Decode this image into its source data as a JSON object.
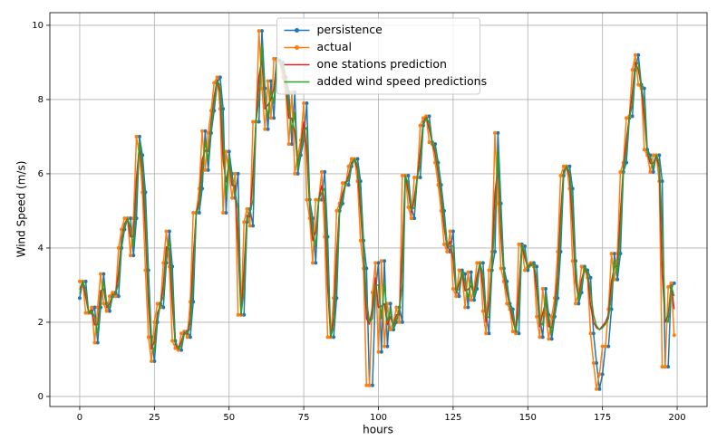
{
  "chart_data": {
    "type": "line",
    "xlabel": "hours",
    "ylabel": "Wind Speed (m/s)",
    "xlim": [
      -10,
      210
    ],
    "xticks": [
      0,
      25,
      50,
      75,
      100,
      125,
      150,
      175,
      200
    ],
    "ylim": [
      -0.27,
      10.34
    ],
    "yticks": [
      0,
      2,
      4,
      6,
      8,
      10
    ],
    "grid": true,
    "legend": "upper center",
    "x": [
      0,
      1,
      2,
      3,
      4,
      5,
      6,
      7,
      8,
      9,
      10,
      11,
      12,
      13,
      14,
      15,
      16,
      17,
      18,
      19,
      20,
      21,
      22,
      23,
      24,
      25,
      26,
      27,
      28,
      29,
      30,
      31,
      32,
      33,
      34,
      35,
      36,
      37,
      38,
      39,
      40,
      41,
      42,
      43,
      44,
      45,
      46,
      47,
      48,
      49,
      50,
      51,
      52,
      53,
      54,
      55,
      56,
      57,
      58,
      59,
      60,
      61,
      62,
      63,
      64,
      65,
      66,
      67,
      68,
      69,
      70,
      71,
      72,
      73,
      74,
      75,
      76,
      77,
      78,
      79,
      80,
      81,
      82,
      83,
      84,
      85,
      86,
      87,
      88,
      89,
      90,
      91,
      92,
      93,
      94,
      95,
      96,
      97,
      98,
      99,
      100,
      101,
      102,
      103,
      104,
      105,
      106,
      107,
      108,
      109,
      110,
      111,
      112,
      113,
      114,
      115,
      116,
      117,
      118,
      119,
      120,
      121,
      122,
      123,
      124,
      125,
      126,
      127,
      128,
      129,
      130,
      131,
      132,
      133,
      134,
      135,
      136,
      137,
      138,
      139,
      140,
      141,
      142,
      143,
      144,
      145,
      146,
      147,
      148,
      149,
      150,
      151,
      152,
      153,
      154,
      155,
      156,
      157,
      158,
      159,
      160,
      161,
      162,
      163,
      164,
      165,
      166,
      167,
      168,
      169,
      170,
      171,
      172,
      173,
      174,
      175,
      176,
      177,
      178,
      179,
      180,
      181,
      182,
      183,
      184,
      185,
      186,
      187,
      188,
      189,
      190,
      191,
      192,
      193,
      194,
      195,
      196,
      197,
      198,
      199
    ],
    "series": [
      {
        "name": "persistence",
        "color": "#1f77b4",
        "marker": true,
        "values": [
          2.65,
          3.1,
          3.1,
          2.25,
          2.25,
          2.4,
          1.45,
          2.4,
          3.3,
          2.5,
          2.3,
          2.7,
          2.8,
          2.7,
          4.0,
          4.5,
          4.8,
          4.8,
          3.8,
          4.8,
          7.0,
          6.5,
          5.5,
          3.4,
          1.6,
          0.95,
          2.0,
          2.5,
          2.4,
          3.6,
          4.45,
          3.5,
          1.5,
          1.3,
          1.25,
          1.7,
          1.75,
          1.6,
          2.55,
          4.95,
          4.95,
          5.6,
          7.15,
          6.1,
          7.1,
          7.7,
          8.45,
          8.6,
          7.75,
          4.95,
          6.6,
          6.0,
          5.35,
          6.0,
          2.2,
          2.2,
          4.7,
          5.05,
          4.6,
          7.4,
          7.4,
          9.85,
          8.3,
          7.2,
          8.5,
          7.5,
          9.1,
          9.05,
          9.0,
          8.6,
          8.2,
          6.8,
          8.2,
          6.0,
          6.5,
          6.9,
          7.9,
          5.3,
          4.8,
          3.6,
          5.3,
          5.3,
          6.05,
          4.3,
          1.6,
          1.6,
          2.65,
          5.0,
          5.2,
          5.75,
          5.7,
          6.2,
          6.4,
          6.4,
          5.8,
          4.2,
          3.45,
          0.3,
          0.3,
          2.8,
          3.6,
          1.2,
          3.65,
          1.35,
          2.5,
          1.8,
          2.0,
          2.4,
          2.0,
          5.95,
          5.95,
          5.1,
          4.8,
          5.9,
          5.9,
          7.3,
          7.5,
          7.55,
          6.85,
          6.8,
          6.3,
          5.7,
          5.0,
          4.1,
          3.9,
          4.45,
          2.9,
          2.7,
          3.4,
          3.3,
          2.4,
          3.35,
          2.6,
          2.9,
          3.6,
          3.6,
          2.3,
          1.7,
          3.4,
          3.9,
          7.1,
          5.2,
          3.45,
          3.1,
          2.5,
          2.35,
          1.75,
          1.7,
          4.1,
          4.05,
          3.4,
          3.55,
          3.6,
          3.5,
          2.15,
          1.6,
          2.9,
          2.2,
          1.55,
          2.15,
          2.65,
          3.9,
          5.95,
          6.2,
          6.2,
          5.6,
          3.65,
          2.5,
          2.8,
          3.5,
          3.4,
          3.2,
          1.7,
          0.9,
          0.2,
          0.6,
          1.35,
          1.35,
          2.35,
          3.85,
          3.15,
          3.85,
          6.05,
          6.3,
          7.5,
          7.55,
          8.8,
          9.2,
          8.4,
          8.3,
          6.65,
          6.5,
          6.05,
          6.5,
          6.5,
          5.8,
          0.8,
          0.8,
          2.95,
          3.05
        ]
      },
      {
        "name": "actual",
        "color": "#ff7f0e",
        "marker": true,
        "values": [
          3.1,
          3.1,
          2.25,
          2.25,
          2.4,
          1.45,
          2.4,
          3.3,
          2.5,
          2.3,
          2.7,
          2.8,
          2.7,
          4.0,
          4.5,
          4.8,
          4.8,
          3.8,
          4.8,
          7.0,
          6.5,
          5.5,
          3.4,
          1.6,
          0.95,
          2.0,
          2.5,
          2.4,
          3.6,
          4.45,
          3.5,
          1.5,
          1.3,
          1.25,
          1.7,
          1.75,
          1.6,
          2.55,
          4.95,
          4.95,
          5.6,
          7.15,
          6.1,
          7.1,
          7.7,
          8.45,
          8.6,
          7.75,
          4.95,
          6.6,
          6.0,
          5.35,
          6.0,
          2.2,
          2.2,
          4.7,
          5.05,
          4.6,
          7.4,
          7.4,
          9.85,
          8.3,
          7.2,
          8.5,
          7.5,
          9.1,
          9.05,
          9.0,
          8.6,
          8.2,
          6.8,
          8.2,
          6.0,
          6.5,
          6.9,
          7.9,
          5.3,
          4.8,
          3.6,
          5.3,
          5.3,
          6.05,
          4.3,
          1.6,
          1.6,
          2.65,
          5.0,
          5.2,
          5.75,
          5.7,
          6.2,
          6.4,
          6.4,
          5.8,
          4.2,
          3.45,
          0.3,
          0.3,
          2.8,
          3.6,
          1.2,
          3.65,
          1.35,
          2.5,
          1.8,
          2.0,
          2.4,
          2.0,
          5.95,
          5.95,
          5.1,
          4.8,
          5.9,
          5.9,
          7.3,
          7.5,
          7.55,
          6.85,
          6.8,
          6.3,
          5.7,
          5.0,
          4.1,
          3.9,
          4.45,
          2.9,
          2.7,
          3.4,
          3.3,
          2.4,
          3.35,
          2.6,
          2.9,
          3.6,
          3.6,
          2.3,
          1.7,
          3.4,
          3.9,
          7.1,
          5.2,
          3.45,
          3.1,
          2.5,
          2.35,
          1.75,
          1.7,
          4.1,
          4.05,
          3.4,
          3.55,
          3.6,
          3.5,
          2.15,
          1.6,
          2.9,
          2.2,
          1.55,
          2.15,
          2.65,
          3.9,
          5.95,
          6.2,
          6.2,
          5.6,
          3.65,
          2.5,
          2.8,
          3.5,
          3.4,
          3.2,
          1.7,
          0.9,
          0.2,
          0.6,
          1.35,
          1.35,
          2.35,
          3.85,
          3.15,
          3.85,
          6.05,
          6.3,
          7.5,
          7.55,
          8.8,
          9.2,
          8.4,
          8.3,
          6.65,
          6.5,
          6.05,
          6.5,
          6.5,
          5.8,
          0.8,
          0.8,
          2.95,
          3.05,
          1.65
        ]
      },
      {
        "name": "one stations prediction",
        "color": "#d62728",
        "marker": false,
        "values": [
          2.88,
          3.1,
          2.68,
          2.25,
          2.33,
          1.93,
          1.93,
          2.85,
          2.9,
          2.4,
          2.5,
          2.75,
          2.75,
          3.35,
          4.25,
          4.65,
          4.8,
          4.3,
          4.3,
          5.9,
          6.75,
          6.0,
          4.45,
          2.5,
          1.28,
          1.48,
          2.25,
          2.45,
          3.0,
          4.03,
          3.98,
          2.5,
          1.4,
          1.28,
          1.48,
          1.73,
          1.68,
          2.08,
          3.75,
          4.95,
          5.28,
          6.38,
          6.63,
          6.6,
          7.4,
          8.08,
          8.53,
          8.18,
          6.35,
          5.78,
          6.3,
          5.68,
          5.68,
          4.1,
          2.2,
          3.45,
          4.88,
          4.83,
          6.0,
          7.4,
          8.63,
          9.08,
          7.75,
          7.85,
          8.0,
          8.3,
          9.08,
          9.03,
          8.8,
          8.4,
          7.5,
          7.5,
          7.1,
          6.25,
          6.7,
          7.4,
          6.6,
          5.05,
          4.2,
          4.45,
          5.3,
          5.68,
          5.18,
          2.95,
          1.6,
          2.13,
          3.83,
          5.1,
          5.48,
          5.73,
          5.95,
          6.3,
          6.4,
          6.1,
          5.0,
          3.83,
          2.1,
          1.95,
          2.4,
          3.2,
          2.4,
          2.43,
          2.5,
          1.93,
          2.15,
          1.9,
          2.2,
          2.2,
          3.98,
          5.95,
          5.53,
          4.95,
          5.35,
          5.9,
          6.6,
          7.4,
          7.53,
          7.2,
          6.83,
          6.55,
          6.0,
          5.35,
          4.55,
          4.0,
          4.18,
          3.68,
          2.8,
          3.05,
          3.35,
          2.85,
          2.88,
          2.98,
          2.75,
          3.25,
          3.6,
          2.95,
          2.0,
          2.55,
          3.65,
          5.5,
          6.15,
          4.33,
          3.28,
          2.8,
          2.43,
          2.05,
          1.73,
          2.9,
          4.08,
          3.73,
          3.48,
          3.58,
          3.55,
          2.83,
          1.88,
          2.25,
          2.55,
          1.88,
          1.85,
          2.4,
          3.28,
          4.93,
          6.08,
          6.2,
          5.9,
          4.63,
          3.08,
          2.65,
          3.15,
          3.45,
          3.3,
          2.45,
          2.0,
          1.85,
          1.8,
          1.9,
          2.0,
          2.2,
          3.1,
          3.5,
          3.5,
          4.95,
          6.18,
          6.9,
          7.53,
          8.18,
          9.0,
          8.8,
          8.35,
          7.48,
          6.58,
          6.28,
          6.28,
          6.5,
          6.15,
          3.3,
          2.0,
          2.2,
          3.0,
          2.35
        ]
      },
      {
        "name": "added wind speed predictions",
        "color": "#2ca02c",
        "marker": false,
        "values": [
          2.76,
          3.1,
          2.89,
          2.25,
          2.29,
          2.16,
          1.69,
          2.63,
          3.1,
          2.45,
          2.4,
          2.73,
          2.78,
          3.03,
          4.13,
          4.58,
          4.8,
          4.55,
          4.05,
          5.35,
          6.88,
          6.25,
          4.98,
          2.95,
          1.44,
          1.21,
          2.13,
          2.48,
          2.7,
          3.81,
          4.21,
          3.0,
          1.45,
          1.29,
          1.36,
          1.71,
          1.71,
          1.84,
          3.15,
          4.95,
          5.11,
          5.99,
          6.89,
          6.35,
          7.25,
          7.89,
          8.49,
          8.39,
          7.05,
          5.36,
          6.45,
          5.84,
          5.51,
          5.05,
          2.2,
          2.83,
          4.79,
          4.94,
          5.3,
          7.4,
          8.01,
          9.46,
          8.03,
          7.53,
          8.25,
          7.9,
          9.09,
          9.04,
          8.9,
          8.5,
          7.85,
          7.15,
          7.65,
          6.13,
          6.6,
          7.15,
          7.25,
          5.18,
          4.5,
          4.03,
          5.3,
          5.49,
          5.61,
          3.63,
          1.6,
          1.86,
          3.24,
          5.05,
          5.34,
          5.74,
          5.83,
          6.25,
          6.4,
          6.25,
          5.4,
          4.01,
          2.6,
          2.0,
          2.1,
          3.0,
          3.0,
          2.1,
          3.08,
          2.0,
          2.33,
          1.85,
          2.1,
          2.3,
          2.99,
          5.95,
          5.74,
          5.03,
          5.08,
          5.9,
          6.25,
          7.35,
          7.51,
          7.38,
          6.84,
          6.68,
          6.15,
          5.53,
          4.78,
          4.05,
          4.04,
          4.06,
          2.85,
          2.88,
          3.38,
          3.08,
          2.64,
          3.16,
          2.68,
          3.08,
          3.6,
          3.28,
          2.15,
          2.13,
          3.53,
          4.7,
          6.63,
          4.76,
          3.36,
          2.95,
          2.46,
          2.2,
          1.74,
          2.3,
          4.09,
          3.89,
          3.44,
          3.56,
          3.58,
          3.16,
          2.01,
          1.93,
          2.73,
          2.04,
          1.7,
          2.28,
          2.96,
          4.41,
          6.01,
          6.2,
          6.05,
          5.11,
          3.36,
          2.58,
          2.98,
          3.48,
          3.35,
          2.83,
          2.2,
          1.9,
          1.8,
          1.85,
          1.95,
          2.1,
          2.73,
          3.68,
          3.33,
          4.4,
          6.11,
          6.6,
          7.51,
          7.86,
          8.9,
          9.0,
          8.38,
          7.89,
          6.61,
          6.39,
          6.16,
          6.5,
          6.33,
          4.55,
          2.1,
          2.0,
          2.98,
          2.7
        ]
      }
    ]
  }
}
